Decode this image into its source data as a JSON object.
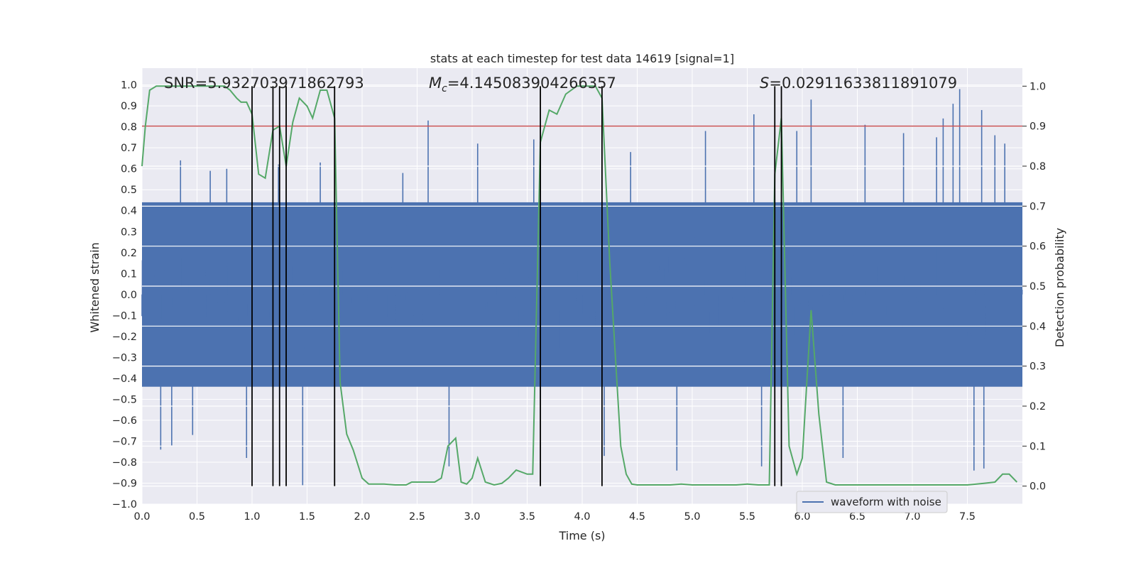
{
  "chart_data": {
    "type": "line",
    "title": "stats at each timestep for test data 14619 [signal=1]",
    "xlabel": "Time (s)",
    "ylabel": "Whitened strain",
    "ylabel_right": "Detection probability",
    "xlim": [
      0.0,
      8.0
    ],
    "ylim": [
      -1.0,
      1.08
    ],
    "ylim_right": [
      -0.045,
      1.045
    ],
    "x_ticks": [
      "0.0",
      "0.5",
      "1.0",
      "1.5",
      "2.0",
      "2.5",
      "3.0",
      "3.5",
      "4.0",
      "4.5",
      "5.0",
      "5.5",
      "6.0",
      "6.5",
      "7.0",
      "7.5"
    ],
    "y_ticks": [
      "1.0",
      "0.9",
      "0.8",
      "0.7",
      "0.6",
      "0.5",
      "0.4",
      "0.3",
      "0.2",
      "0.1",
      "0.0",
      "−0.1",
      "−0.2",
      "−0.3",
      "−0.4",
      "−0.5",
      "−0.6",
      "−0.7",
      "−0.8",
      "−0.9",
      "−1.0"
    ],
    "y_right_ticks": [
      "1.0",
      "0.9",
      "0.8",
      "0.7",
      "0.6",
      "0.5",
      "0.4",
      "0.3",
      "0.2",
      "0.1",
      "0.0"
    ],
    "annotations": {
      "snr": "SNR=5.932703971862793",
      "mc_symbol": "M",
      "mc_subscript": "c",
      "mc_value": "=4.145083904266357",
      "s_symbol": "S",
      "s_value": "=0.02911633811891079"
    },
    "legend": {
      "label": "waveform with noise",
      "location": "lower-right"
    },
    "threshold": {
      "value": 0.9,
      "axis": "right",
      "color": "#c44e52"
    },
    "vertical_markers": [
      1.0,
      1.19,
      1.25,
      1.31,
      1.75,
      3.62,
      4.18,
      5.75,
      5.81
    ],
    "series": [
      {
        "name": "waveform with noise",
        "axis": "left",
        "color": "#4c72b0",
        "note": "whitened strain noise, ~|0.45| typical envelope with spikes to ~0.95",
        "spikes": [
          [
            0.17,
            -0.74
          ],
          [
            0.27,
            -0.72
          ],
          [
            0.35,
            0.64
          ],
          [
            0.46,
            -0.67
          ],
          [
            0.62,
            0.59
          ],
          [
            0.77,
            0.6
          ],
          [
            0.95,
            -0.78
          ],
          [
            1.24,
            0.62
          ],
          [
            1.46,
            -0.91
          ],
          [
            1.62,
            0.63
          ],
          [
            2.37,
            0.58
          ],
          [
            2.6,
            0.83
          ],
          [
            2.79,
            -0.82
          ],
          [
            3.05,
            0.72
          ],
          [
            3.56,
            0.74
          ],
          [
            4.2,
            -0.77
          ],
          [
            4.44,
            0.68
          ],
          [
            4.86,
            -0.84
          ],
          [
            5.12,
            0.78
          ],
          [
            5.56,
            0.86
          ],
          [
            5.63,
            -0.82
          ],
          [
            5.95,
            0.78
          ],
          [
            6.08,
            0.93
          ],
          [
            6.37,
            -0.78
          ],
          [
            6.57,
            0.81
          ],
          [
            6.92,
            0.77
          ],
          [
            7.22,
            0.75
          ],
          [
            7.28,
            0.84
          ],
          [
            7.37,
            0.91
          ],
          [
            7.43,
            0.98
          ],
          [
            7.56,
            -0.84
          ],
          [
            7.63,
            0.88
          ],
          [
            7.65,
            -0.83
          ],
          [
            7.75,
            0.76
          ],
          [
            7.84,
            0.72
          ]
        ]
      },
      {
        "name": "detection probability",
        "axis": "right",
        "color": "#55a868",
        "x": [
          0.0,
          0.03,
          0.07,
          0.13,
          0.2,
          0.3,
          0.4,
          0.5,
          0.6,
          0.7,
          0.75,
          0.8,
          0.86,
          0.9,
          0.95,
          1.0,
          1.06,
          1.12,
          1.19,
          1.25,
          1.31,
          1.37,
          1.43,
          1.5,
          1.55,
          1.62,
          1.68,
          1.75,
          1.8,
          1.86,
          1.92,
          2.0,
          2.06,
          2.12,
          2.2,
          2.3,
          2.4,
          2.45,
          2.55,
          2.6,
          2.66,
          2.72,
          2.78,
          2.85,
          2.9,
          2.95,
          3.0,
          3.05,
          3.12,
          3.2,
          3.27,
          3.33,
          3.4,
          3.5,
          3.55,
          3.62,
          3.7,
          3.77,
          3.85,
          3.9,
          3.95,
          4.0,
          4.05,
          4.12,
          4.18,
          4.25,
          4.35,
          4.4,
          4.45,
          4.5,
          4.65,
          4.8,
          4.9,
          5.0,
          5.15,
          5.3,
          5.4,
          5.5,
          5.6,
          5.7,
          5.75,
          5.81,
          5.88,
          5.95,
          6.0,
          6.08,
          6.15,
          6.22,
          6.3,
          6.45,
          6.6,
          6.75,
          6.9,
          7.05,
          7.2,
          7.35,
          7.5,
          7.65,
          7.75,
          7.82,
          7.88,
          7.95
        ],
        "values": [
          0.8,
          0.9,
          0.99,
          1.0,
          1.0,
          1.0,
          1.0,
          1.0,
          1.0,
          1.0,
          1.0,
          0.99,
          0.97,
          0.96,
          0.96,
          0.93,
          0.78,
          0.77,
          0.89,
          0.9,
          0.8,
          0.91,
          0.97,
          0.95,
          0.92,
          0.99,
          0.99,
          0.92,
          0.26,
          0.13,
          0.09,
          0.02,
          0.005,
          0.005,
          0.005,
          0.003,
          0.003,
          0.01,
          0.01,
          0.01,
          0.01,
          0.02,
          0.1,
          0.12,
          0.01,
          0.005,
          0.02,
          0.07,
          0.01,
          0.003,
          0.007,
          0.02,
          0.04,
          0.03,
          0.03,
          0.86,
          0.94,
          0.93,
          0.98,
          0.99,
          1.0,
          1.0,
          1.0,
          1.0,
          0.97,
          0.56,
          0.1,
          0.03,
          0.005,
          0.003,
          0.003,
          0.003,
          0.005,
          0.003,
          0.003,
          0.003,
          0.003,
          0.005,
          0.003,
          0.003,
          0.78,
          0.92,
          0.1,
          0.03,
          0.07,
          0.44,
          0.18,
          0.01,
          0.003,
          0.003,
          0.003,
          0.003,
          0.003,
          0.003,
          0.003,
          0.003,
          0.003,
          0.007,
          0.01,
          0.03,
          0.03,
          0.01
        ]
      }
    ]
  }
}
